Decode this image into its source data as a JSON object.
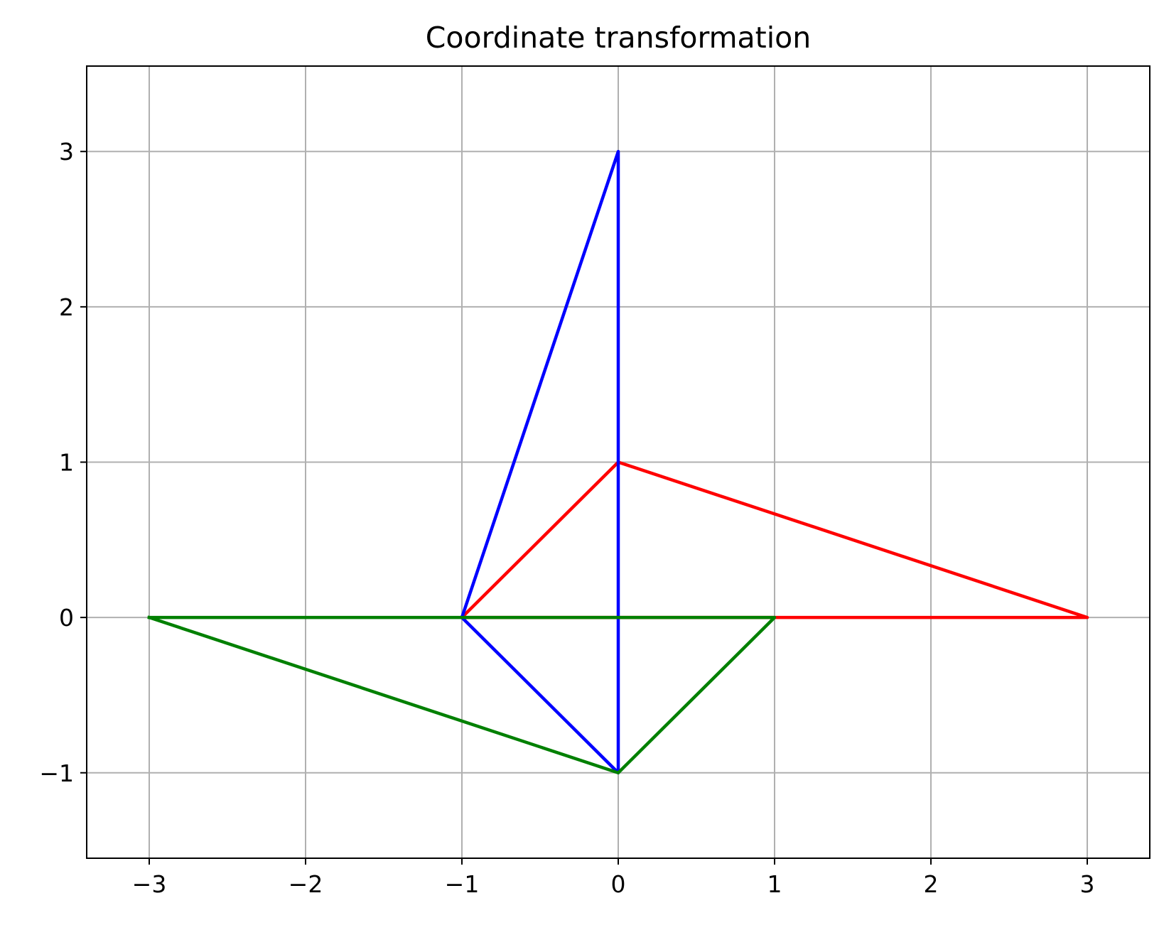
{
  "chart_data": {
    "type": "line",
    "title": "Coordinate transformation",
    "xlabel": "",
    "ylabel": "",
    "xlim": [
      -3.4,
      3.4
    ],
    "ylim": [
      -1.55,
      3.55
    ],
    "grid": true,
    "x_ticks": [
      -3,
      -2,
      -1,
      0,
      1,
      2,
      3
    ],
    "y_ticks": [
      -1,
      0,
      1,
      2,
      3
    ],
    "x_tick_labels": [
      "−3",
      "−2",
      "−1",
      "0",
      "1",
      "2",
      "3"
    ],
    "y_tick_labels": [
      "−1",
      "0",
      "1",
      "2",
      "3"
    ],
    "series": [
      {
        "color": "#ff0000",
        "x": [
          -1,
          0,
          3,
          -1
        ],
        "y": [
          0,
          1,
          0,
          0
        ]
      },
      {
        "color": "#0000ff",
        "x": [
          -1,
          0,
          0,
          -1
        ],
        "y": [
          0,
          3,
          -1,
          0
        ]
      },
      {
        "color": "#008000",
        "x": [
          -3,
          1,
          0,
          -3
        ],
        "y": [
          0,
          0,
          -1,
          0
        ]
      }
    ]
  }
}
